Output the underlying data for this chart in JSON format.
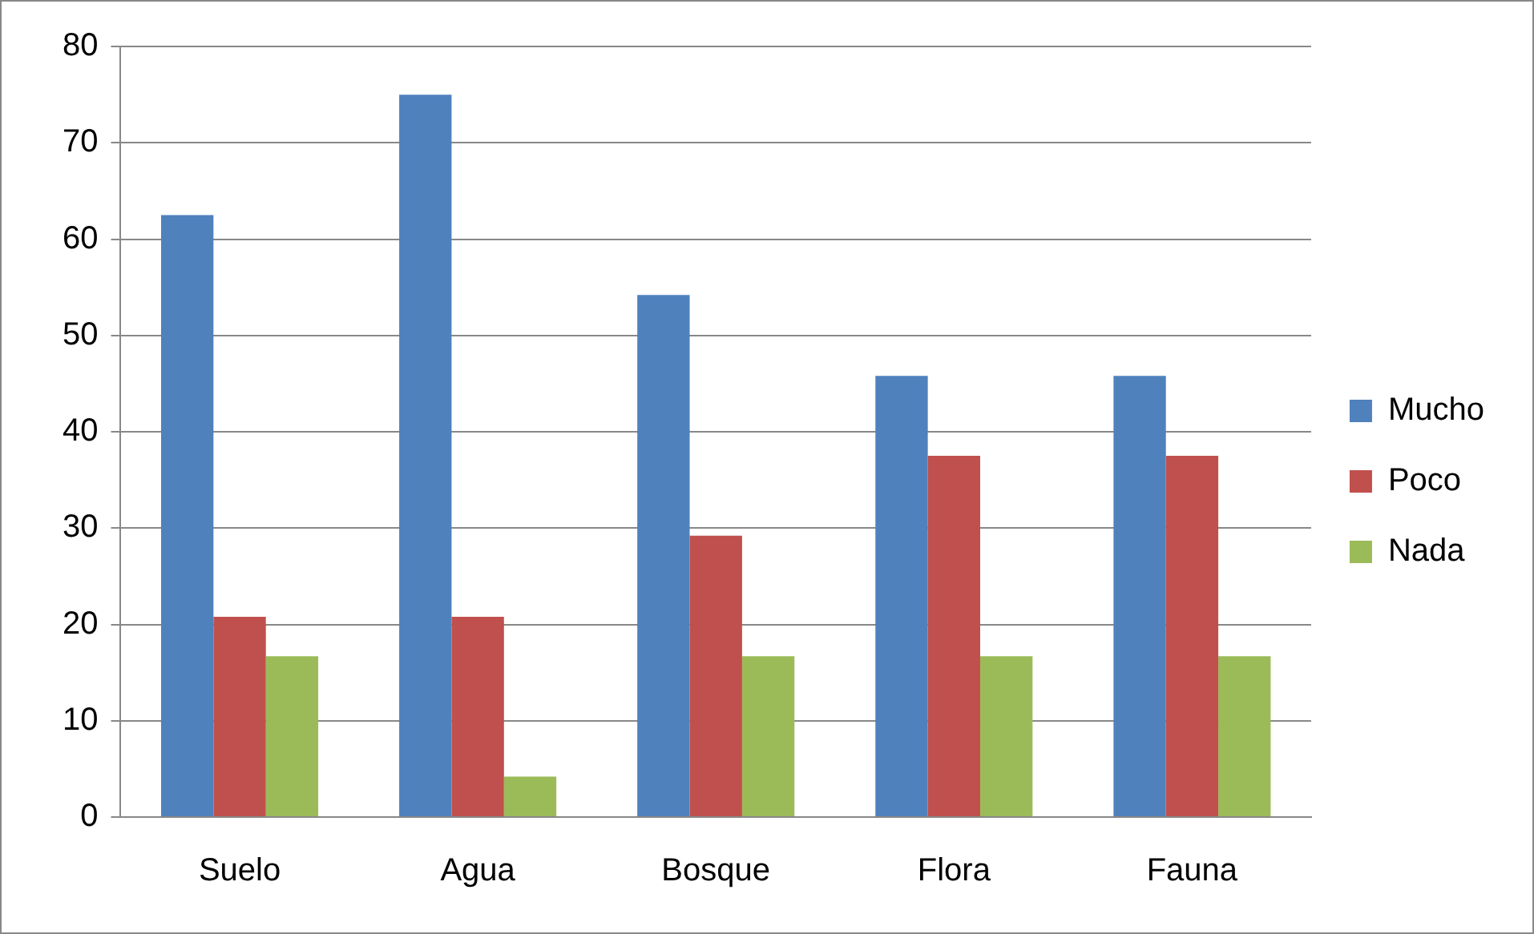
{
  "chart_data": {
    "type": "bar",
    "categories": [
      "Suelo",
      "Agua",
      "Bosque",
      "Flora",
      "Fauna"
    ],
    "series": [
      {
        "name": "Mucho",
        "color": "#4f81bd",
        "values": [
          62.5,
          75,
          54.2,
          45.8,
          45.8
        ]
      },
      {
        "name": "Poco",
        "color": "#c0504d",
        "values": [
          20.8,
          20.8,
          29.2,
          37.5,
          37.5
        ]
      },
      {
        "name": "Nada",
        "color": "#9bbb59",
        "values": [
          16.7,
          4.2,
          16.7,
          16.7,
          16.7
        ]
      }
    ],
    "ylim": [
      0,
      80
    ],
    "yticks": [
      0,
      10,
      20,
      30,
      40,
      50,
      60,
      70,
      80
    ],
    "grid": "y",
    "legend": "right"
  }
}
